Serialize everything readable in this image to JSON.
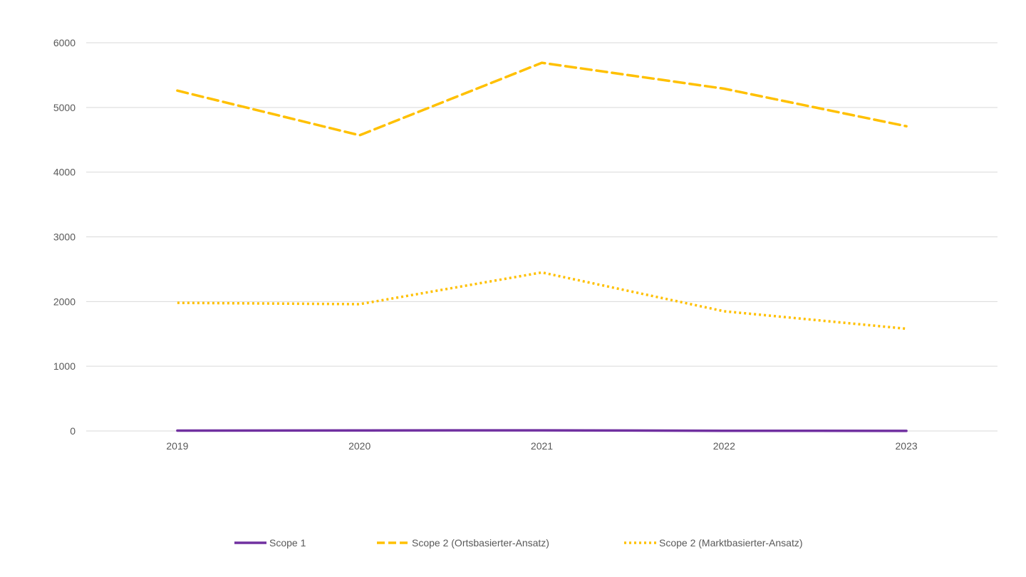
{
  "chart_data": {
    "type": "line",
    "categories": [
      "2019",
      "2020",
      "2021",
      "2022",
      "2023"
    ],
    "ylim": [
      0,
      6000
    ],
    "yticks": [
      0,
      1000,
      2000,
      3000,
      4000,
      5000,
      6000
    ],
    "ytick_labels": [
      "0",
      "1000",
      "2000",
      "3000",
      "4000",
      "5000",
      "6000"
    ],
    "grid": true,
    "legend_position": "bottom",
    "series": [
      {
        "name": "Scope 1",
        "values": [
          5,
          8,
          10,
          3,
          2
        ],
        "color": "#7030A0",
        "dash": "solid"
      },
      {
        "name": "Scope 2 (Ortsbasierter-Ansatz)",
        "values": [
          5260,
          4570,
          5690,
          5290,
          4710
        ],
        "color": "#FFC000",
        "dash": "dashed"
      },
      {
        "name": "Scope 2 (Marktbasierter-Ansatz)",
        "values": [
          1980,
          1960,
          2450,
          1850,
          1580
        ],
        "color": "#FFC000",
        "dash": "dotted"
      }
    ]
  }
}
